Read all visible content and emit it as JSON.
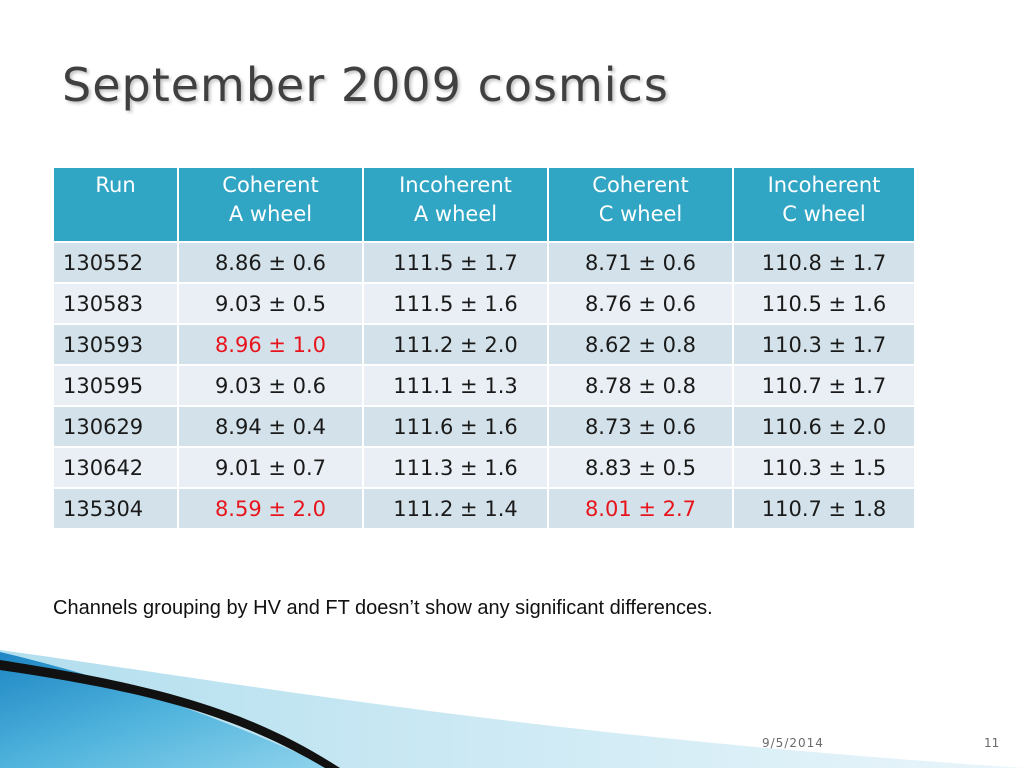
{
  "slide": {
    "title": "September 2009 cosmics",
    "note": "Channels grouping by HV and FT doesn’t show any significant differences.",
    "footer_date": "9/5/2014",
    "page_number": "11"
  },
  "table": {
    "headers": [
      {
        "line1": "Run",
        "line2": ""
      },
      {
        "line1": "Coherent",
        "line2": "A wheel"
      },
      {
        "line1": "Incoherent",
        "line2": "A wheel"
      },
      {
        "line1": "Coherent",
        "line2": "C wheel"
      },
      {
        "line1": "Incoherent",
        "line2": "C wheel"
      }
    ],
    "rows": [
      {
        "run": "130552",
        "coh_a": "8.86 ± 0.6",
        "incoh_a": "111.5 ± 1.7",
        "coh_c": "8.71 ± 0.6",
        "incoh_c": "110.8 ± 1.7"
      },
      {
        "run": "130583",
        "coh_a": "9.03 ± 0.5",
        "incoh_a": "111.5 ± 1.6",
        "coh_c": "8.76 ± 0.6",
        "incoh_c": "110.5 ± 1.6"
      },
      {
        "run": "130593",
        "coh_a": "8.96 ± 1.0",
        "incoh_a": "111.2 ± 2.0",
        "coh_c": "8.62 ± 0.8",
        "incoh_c": "110.3 ± 1.7"
      },
      {
        "run": "130595",
        "coh_a": "9.03 ± 0.6",
        "incoh_a": "111.1 ± 1.3",
        "coh_c": "8.78 ± 0.8",
        "incoh_c": "110.7 ± 1.7"
      },
      {
        "run": "130629",
        "coh_a": "8.94 ± 0.4",
        "incoh_a": "111.6 ± 1.6",
        "coh_c": "8.73 ± 0.6",
        "incoh_c": "110.6 ± 2.0"
      },
      {
        "run": "130642",
        "coh_a": "9.01 ± 0.7",
        "incoh_a": "111.3 ± 1.6",
        "coh_c": "8.83 ± 0.5",
        "incoh_c": "110.3 ± 1.5"
      },
      {
        "run": "135304",
        "coh_a": "8.59 ± 2.0",
        "incoh_a": "111.2 ± 1.4",
        "coh_c": "8.01 ± 2.7",
        "incoh_c": "110.7 ± 1.8"
      }
    ]
  },
  "colors": {
    "header_bg": "#31a5c4",
    "row_odd_bg": "#d3e2ea",
    "row_even_bg": "#e9eff4",
    "highlight_text": "#e8141c"
  }
}
